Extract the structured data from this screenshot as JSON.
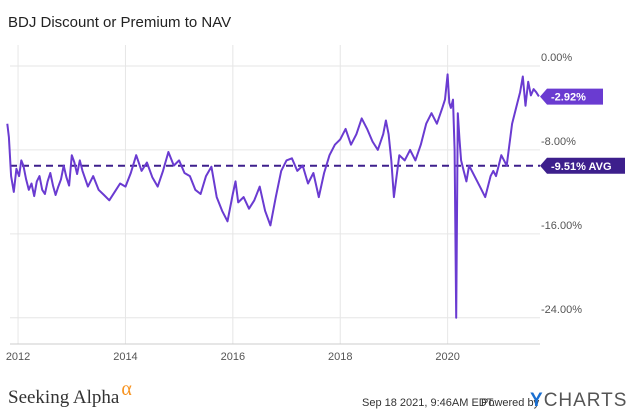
{
  "chart_data": {
    "type": "line",
    "title": "BDJ Discount or Premium to NAV",
    "x_tick_labels": [
      "2012",
      "2014",
      "2016",
      "2018",
      "2020"
    ],
    "x_ticks": [
      2012,
      2014,
      2016,
      2018,
      2020
    ],
    "y_tick_labels": [
      "0.00%",
      "-8.00%",
      "-16.00%",
      "-24.00%"
    ],
    "y_ticks": [
      0,
      -8,
      -16,
      -24
    ],
    "xlim": [
      2011.85,
      2021.72
    ],
    "ylim": [
      -26.5,
      2.0
    ],
    "grid": true,
    "line_color": "#6a3bd1",
    "series": [
      {
        "x": [
          2011.8,
          2011.83,
          2011.87,
          2011.92,
          2011.97,
          2012.02,
          2012.06,
          2012.1,
          2012.15,
          2012.2,
          2012.25,
          2012.3,
          2012.35,
          2012.4,
          2012.45,
          2012.5,
          2012.55,
          2012.6,
          2012.65,
          2012.7,
          2012.75,
          2012.8,
          2012.85,
          2012.9,
          2012.95,
          2013.0,
          2013.05,
          2013.1,
          2013.15,
          2013.2,
          2013.3,
          2013.4,
          2013.5,
          2013.6,
          2013.7,
          2013.8,
          2013.9,
          2014.0,
          2014.1,
          2014.2,
          2014.3,
          2014.4,
          2014.5,
          2014.6,
          2014.7,
          2014.8,
          2014.9,
          2015.0,
          2015.1,
          2015.2,
          2015.3,
          2015.4,
          2015.5,
          2015.6,
          2015.7,
          2015.8,
          2015.9,
          2016.0,
          2016.05,
          2016.1,
          2016.2,
          2016.3,
          2016.4,
          2016.5,
          2016.6,
          2016.7,
          2016.8,
          2016.9,
          2017.0,
          2017.1,
          2017.2,
          2017.3,
          2017.4,
          2017.5,
          2017.6,
          2017.7,
          2017.8,
          2017.9,
          2018.0,
          2018.1,
          2018.2,
          2018.3,
          2018.4,
          2018.5,
          2018.6,
          2018.7,
          2018.8,
          2018.85,
          2018.9,
          2018.95,
          2019.0,
          2019.1,
          2019.2,
          2019.3,
          2019.4,
          2019.5,
          2019.6,
          2019.7,
          2019.8,
          2019.9,
          2019.95,
          2020.0,
          2020.03,
          2020.06,
          2020.1,
          2020.13,
          2020.16,
          2020.19,
          2020.22,
          2020.25,
          2020.3,
          2020.35,
          2020.4,
          2020.5,
          2020.6,
          2020.7,
          2020.8,
          2020.85,
          2020.9,
          2020.95,
          2021.0,
          2021.1,
          2021.2,
          2021.3,
          2021.35,
          2021.4,
          2021.45,
          2021.5,
          2021.55,
          2021.6,
          2021.65,
          2021.7
        ],
        "y": [
          -5.5,
          -6.8,
          -10.5,
          -12.0,
          -9.8,
          -10.5,
          -9.0,
          -9.5,
          -10.8,
          -11.8,
          -11.2,
          -12.4,
          -11.0,
          -10.5,
          -11.8,
          -12.2,
          -11.0,
          -10.2,
          -11.4,
          -12.3,
          -11.5,
          -10.8,
          -9.5,
          -10.6,
          -11.4,
          -8.5,
          -9.2,
          -10.3,
          -9.0,
          -10.0,
          -11.5,
          -10.5,
          -11.8,
          -12.3,
          -12.8,
          -12.0,
          -11.2,
          -11.5,
          -10.2,
          -8.5,
          -10.0,
          -9.2,
          -10.6,
          -11.5,
          -10.0,
          -8.2,
          -9.5,
          -9.0,
          -10.2,
          -10.5,
          -11.8,
          -12.2,
          -10.5,
          -9.6,
          -12.5,
          -13.8,
          -14.8,
          -12.2,
          -11.0,
          -13.0,
          -12.5,
          -13.6,
          -12.8,
          -11.5,
          -13.8,
          -15.2,
          -12.5,
          -10.0,
          -9.0,
          -8.8,
          -10.0,
          -9.5,
          -11.2,
          -10.2,
          -12.5,
          -10.2,
          -8.5,
          -7.5,
          -7.0,
          -6.0,
          -7.5,
          -6.5,
          -5.0,
          -6.0,
          -7.2,
          -8.0,
          -6.5,
          -5.2,
          -6.5,
          -9.0,
          -12.5,
          -8.5,
          -9.0,
          -8.0,
          -9.0,
          -7.5,
          -5.5,
          -4.5,
          -5.5,
          -4.0,
          -3.2,
          -0.8,
          -3.5,
          -4.0,
          -3.2,
          -8.0,
          -24.0,
          -4.5,
          -7.0,
          -9.0,
          -10.0,
          -11.0,
          -9.5,
          -10.5,
          -11.5,
          -12.5,
          -10.5,
          -10.0,
          -10.5,
          -9.5,
          -8.5,
          -9.5,
          -5.5,
          -3.5,
          -2.5,
          -1.0,
          -3.8,
          -1.5,
          -2.8,
          -2.2,
          -2.5,
          -2.9
        ]
      }
    ],
    "annotations": [
      {
        "label": "-2.92%",
        "value": -2.92,
        "color": "#6a3bd1"
      },
      {
        "label": "-9.51% AVG",
        "value": -9.51,
        "color": "#3d1f8c",
        "style": "dashed"
      }
    ]
  },
  "footer": {
    "brand": "Seeking Alpha",
    "brand_symbol": "α",
    "timestamp": "Sep 18 2021, 9:46AM EDT.",
    "powered_by": "Powered by",
    "logo_y": "Y",
    "logo_rest": "CHARTS"
  }
}
